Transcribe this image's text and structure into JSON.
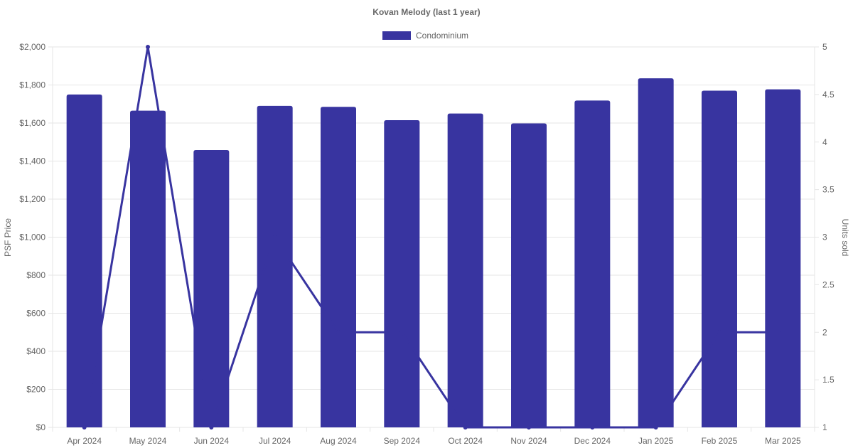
{
  "chart_data": {
    "type": "bar",
    "title": "Kovan Melody (last 1 year)",
    "categories": [
      "Apr 2024",
      "May 2024",
      "Jun 2024",
      "Jul 2024",
      "Aug 2024",
      "Sep 2024",
      "Oct 2024",
      "Nov 2024",
      "Dec 2024",
      "Jan 2025",
      "Feb 2025",
      "Mar 2025"
    ],
    "series": [
      {
        "name": "Condominium",
        "type": "bar",
        "axis": "left",
        "values": [
          1750,
          1665,
          1458,
          1690,
          1685,
          1615,
          1650,
          1598,
          1718,
          1835,
          1770,
          1777
        ]
      },
      {
        "type": "line",
        "axis": "right",
        "values": [
          1,
          5,
          1,
          3,
          2,
          2,
          1,
          1,
          1,
          1,
          2,
          2
        ]
      }
    ],
    "ylabel": "PSF Price",
    "y2label": "Units sold",
    "ylim": [
      0,
      2000
    ],
    "y2lim": [
      1,
      5
    ],
    "yticks": [
      "$0",
      "$200",
      "$400",
      "$600",
      "$800",
      "$1,000",
      "$1,200",
      "$1,400",
      "$1,600",
      "$1,800",
      "$2,000"
    ],
    "y2ticks": [
      "1",
      "1.5",
      "2",
      "2.5",
      "3",
      "3.5",
      "4",
      "4.5",
      "5"
    ],
    "grid": true,
    "legend": "top-center",
    "colors": {
      "bar": "#3834a0",
      "line": "#3834a0",
      "grid": "#e6e6e6",
      "text": "#666666"
    }
  }
}
